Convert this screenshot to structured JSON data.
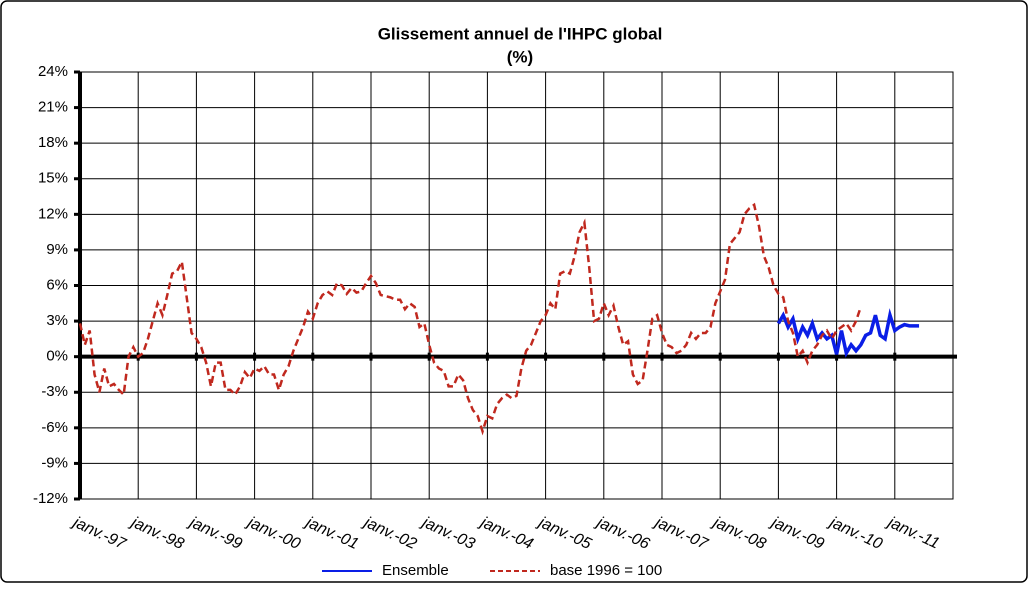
{
  "chart_data": {
    "type": "line",
    "title": "Glissement annuel de l'IHPC global",
    "subtitle": "(%)",
    "categories": [
      "janv.-97",
      null,
      null,
      null,
      null,
      null,
      null,
      null,
      null,
      null,
      null,
      null,
      "janv.-98",
      null,
      null,
      null,
      null,
      null,
      null,
      null,
      null,
      null,
      null,
      null,
      "janv.-99",
      null,
      null,
      null,
      null,
      null,
      null,
      null,
      null,
      null,
      null,
      null,
      "janv.-00",
      null,
      null,
      null,
      null,
      null,
      null,
      null,
      null,
      null,
      null,
      null,
      "janv.-01",
      null,
      null,
      null,
      null,
      null,
      null,
      null,
      null,
      null,
      null,
      null,
      "janv.-02",
      null,
      null,
      null,
      null,
      null,
      null,
      null,
      null,
      null,
      null,
      null,
      "janv.-03",
      null,
      null,
      null,
      null,
      null,
      null,
      null,
      null,
      null,
      null,
      null,
      "janv.-04",
      null,
      null,
      null,
      null,
      null,
      null,
      null,
      null,
      null,
      null,
      null,
      "janv.-05",
      null,
      null,
      null,
      null,
      null,
      null,
      null,
      null,
      null,
      null,
      null,
      "janv.-06",
      null,
      null,
      null,
      null,
      null,
      null,
      null,
      null,
      null,
      null,
      null,
      "janv.-07",
      null,
      null,
      null,
      null,
      null,
      null,
      null,
      null,
      null,
      null,
      null,
      "janv.-08",
      null,
      null,
      null,
      null,
      null,
      null,
      null,
      null,
      null,
      null,
      null,
      "janv.-09",
      null,
      null,
      null,
      null,
      null,
      null,
      null,
      null,
      null,
      null,
      null,
      "janv.-10",
      null,
      null,
      null,
      null,
      null,
      null,
      null,
      null,
      null,
      null,
      null,
      "janv.-11",
      null,
      null,
      null,
      null,
      null,
      null,
      null,
      null,
      null,
      null,
      null
    ],
    "series": [
      {
        "name": "Ensemble",
        "color": "#0a1ee6",
        "style": "solid",
        "values": [
          null,
          null,
          null,
          null,
          null,
          null,
          null,
          null,
          null,
          null,
          null,
          null,
          null,
          null,
          null,
          null,
          null,
          null,
          null,
          null,
          null,
          null,
          null,
          null,
          null,
          null,
          null,
          null,
          null,
          null,
          null,
          null,
          null,
          null,
          null,
          null,
          null,
          null,
          null,
          null,
          null,
          null,
          null,
          null,
          null,
          null,
          null,
          null,
          null,
          null,
          null,
          null,
          null,
          null,
          null,
          null,
          null,
          null,
          null,
          null,
          null,
          null,
          null,
          null,
          null,
          null,
          null,
          null,
          null,
          null,
          null,
          null,
          null,
          null,
          null,
          null,
          null,
          null,
          null,
          null,
          null,
          null,
          null,
          null,
          null,
          null,
          null,
          null,
          null,
          null,
          null,
          null,
          null,
          null,
          null,
          null,
          null,
          null,
          null,
          null,
          null,
          null,
          null,
          null,
          null,
          null,
          null,
          null,
          null,
          null,
          null,
          null,
          null,
          null,
          null,
          null,
          null,
          null,
          null,
          null,
          null,
          null,
          null,
          null,
          null,
          null,
          null,
          null,
          null,
          null,
          null,
          null,
          null,
          null,
          null,
          null,
          null,
          null,
          null,
          null,
          null,
          null,
          null,
          null,
          2.8,
          3.5,
          2.5,
          3.2,
          1.5,
          2.5,
          1.8,
          2.8,
          1.5,
          2.0,
          1.5,
          1.8,
          0.2,
          2.2,
          0.3,
          1.0,
          0.5,
          1.0,
          1.8,
          2.0,
          3.5,
          1.8,
          1.5,
          3.5,
          2.2,
          2.5,
          2.7,
          2.6,
          2.6,
          2.6,
          null,
          null,
          null,
          null,
          null,
          null
        ]
      },
      {
        "name": "base 1996 = 100",
        "color": "#c0281e",
        "style": "dashed",
        "values": [
          2.8,
          1.0,
          2.2,
          -1.5,
          -3.0,
          -1.0,
          -2.5,
          -2.3,
          -2.8,
          -3.2,
          0.0,
          0.8,
          0.0,
          0.3,
          1.5,
          3.0,
          4.5,
          3.5,
          5.2,
          7.0,
          7.2,
          8.0,
          5.0,
          2.0,
          1.5,
          0.8,
          -0.5,
          -2.5,
          -0.5,
          -0.5,
          -2.8,
          -2.8,
          -3.2,
          -2.5,
          -1.3,
          -1.8,
          -1.0,
          -1.2,
          -0.8,
          -1.5,
          -1.5,
          -2.8,
          -1.5,
          -0.8,
          0.5,
          1.5,
          2.5,
          3.8,
          3.2,
          4.5,
          5.2,
          5.5,
          5.2,
          6.2,
          6.0,
          5.3,
          5.8,
          5.4,
          5.5,
          6.2,
          6.8,
          6.2,
          5.2,
          5.1,
          5.0,
          4.8,
          4.8,
          4.0,
          4.5,
          4.2,
          2.5,
          2.8,
          1.0,
          -0.5,
          -1.0,
          -1.2,
          -2.5,
          -2.5,
          -1.5,
          -2.0,
          -3.5,
          -4.5,
          -5.0,
          -6.3,
          -5.0,
          -5.2,
          -4.0,
          -3.5,
          -3.2,
          -3.5,
          -3.3,
          -1.0,
          0.5,
          1.0,
          2.0,
          3.0,
          3.5,
          4.5,
          4.0,
          7.0,
          7.2,
          7.0,
          8.5,
          10.5,
          11.3,
          7.5,
          3.0,
          3.2,
          4.5,
          3.5,
          4.3,
          2.5,
          1.0,
          1.3,
          -1.5,
          -2.3,
          -2.0,
          0.5,
          3.2,
          3.5,
          2.0,
          1.0,
          0.8,
          0.3,
          0.5,
          1.0,
          2.0,
          1.5,
          2.0,
          2.0,
          2.5,
          4.5,
          5.5,
          6.5,
          9.5,
          10.0,
          10.5,
          12.0,
          12.5,
          12.8,
          11.0,
          8.5,
          7.5,
          6.0,
          5.3,
          5.0,
          3.0,
          2.0,
          0.0,
          0.5,
          -0.5,
          0.5,
          1.0,
          1.8,
          2.2,
          1.5,
          2.2,
          2.5,
          2.8,
          2.2,
          3.0,
          4.2,
          null,
          null,
          null,
          null,
          null,
          null,
          null,
          null,
          null,
          null,
          null,
          null,
          null,
          null,
          null,
          null,
          null,
          null
        ]
      }
    ],
    "ylim": [
      -12,
      24
    ],
    "yticks": [
      {
        "value": -12,
        "label": "-12%"
      },
      {
        "value": -9,
        "label": "-9%"
      },
      {
        "value": -6,
        "label": "-6%"
      },
      {
        "value": -3,
        "label": "-3%"
      },
      {
        "value": 0,
        "label": "0%"
      },
      {
        "value": 3,
        "label": "3%"
      },
      {
        "value": 6,
        "label": "6%"
      },
      {
        "value": 9,
        "label": "9%"
      },
      {
        "value": 12,
        "label": "12%"
      },
      {
        "value": 15,
        "label": "15%"
      },
      {
        "value": 18,
        "label": "18%"
      },
      {
        "value": 21,
        "label": "21%"
      },
      {
        "value": 24,
        "label": "24%"
      }
    ],
    "grid": true,
    "legend": "bottom"
  }
}
